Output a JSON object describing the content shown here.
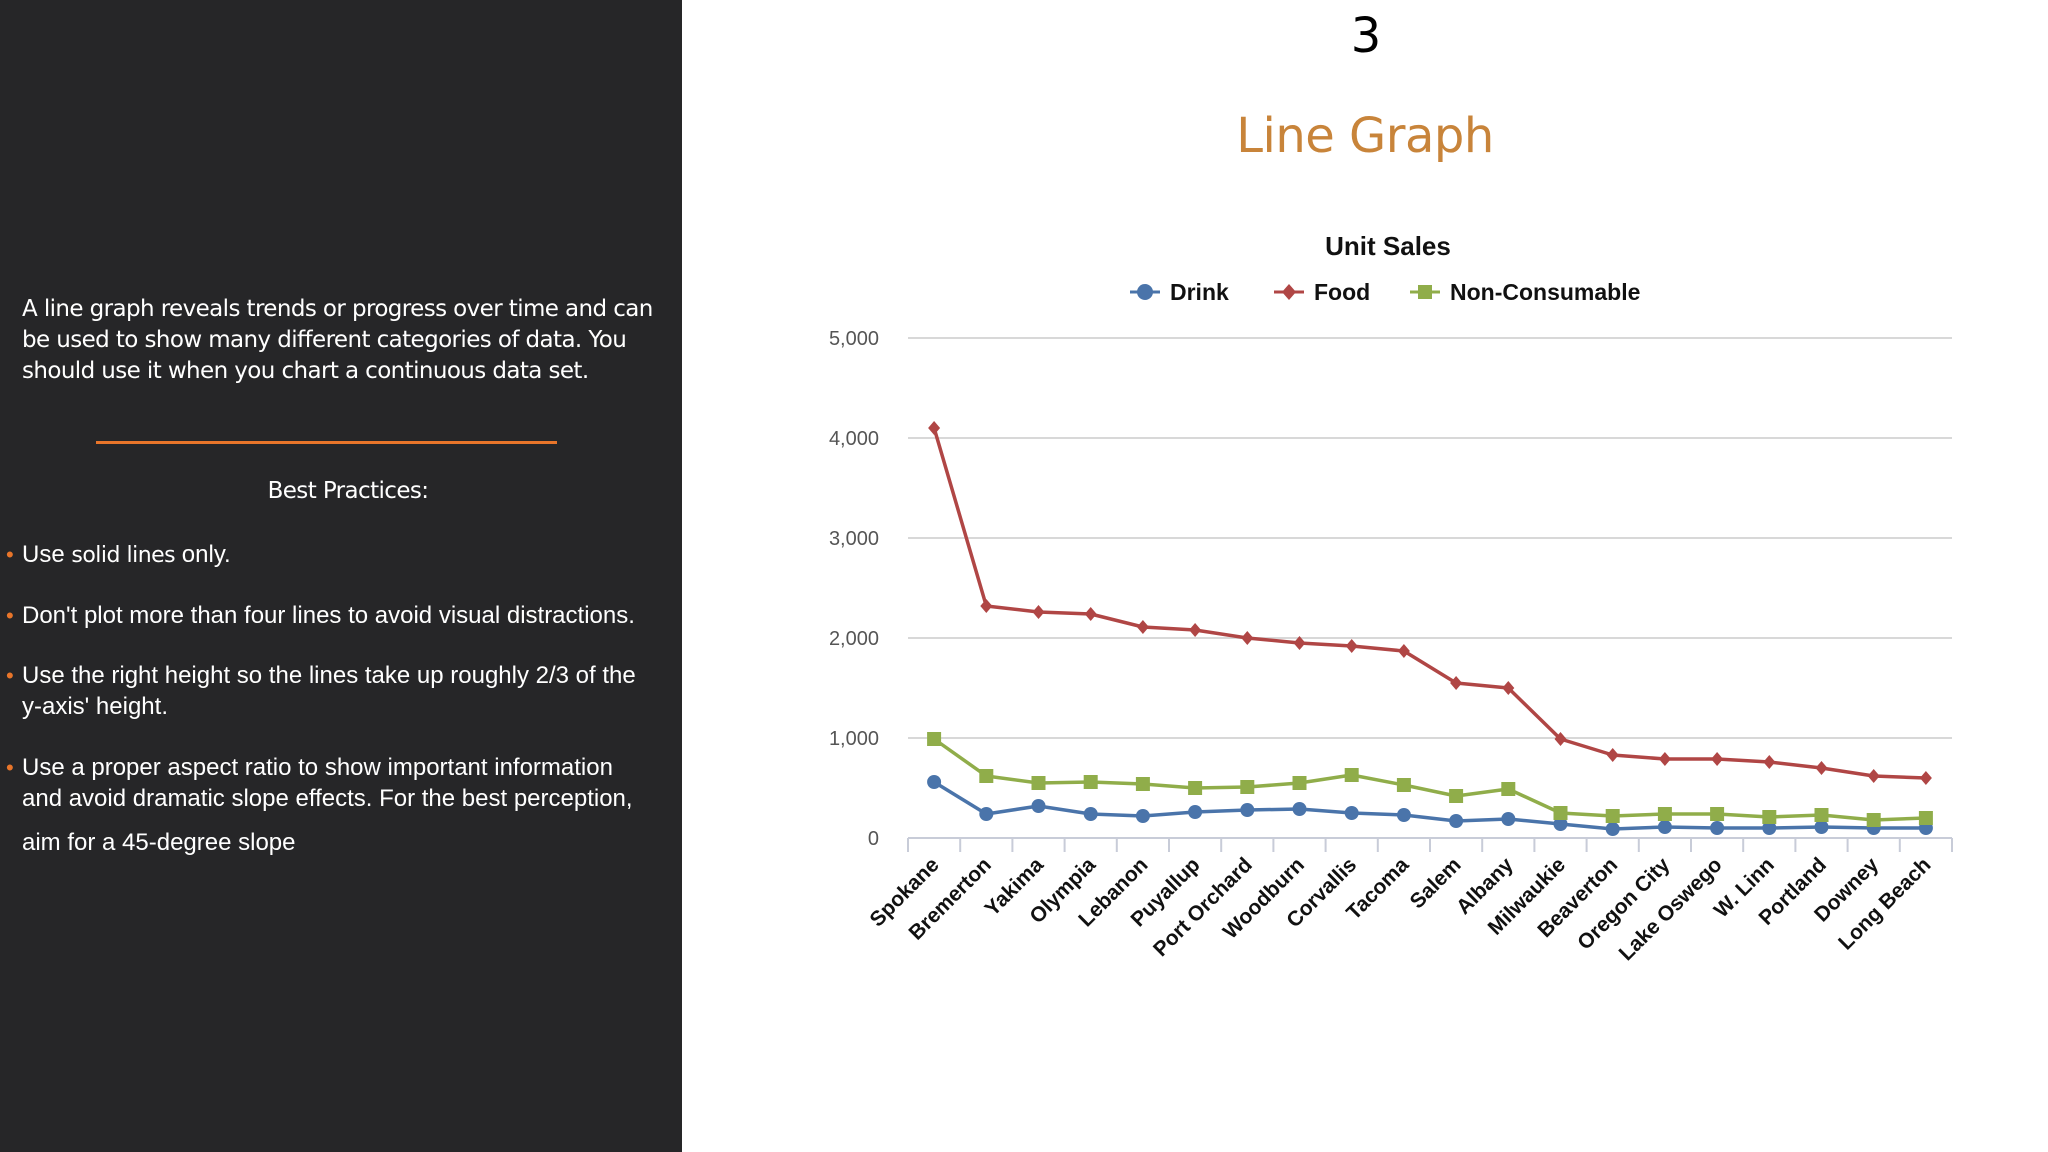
{
  "slide": {
    "number": "3",
    "title": "Line Graph"
  },
  "left_panel": {
    "intro": "A line graph reveals trends or progress over time and can be used to show many different categories of data. You should use it when you chart a continuous data set.",
    "best_practices_heading": "Best Practices:",
    "bullets": [
      {
        "pre": "Use ",
        "strong": "solid lines",
        "post": " only."
      },
      {
        "text": "Don't plot more than four lines to avoid visual distractions."
      },
      {
        "line1": "Use the right height so the lines take up roughly 2/3 of the",
        "line2": "y-axis' height."
      },
      {
        "line1": "Use a proper aspect ratio to show important information",
        "line2": "and avoid dramatic slope effects. For the best perception,",
        "line3": "aim for a 45-degree slope"
      }
    ],
    "colors": {
      "background": "#262628",
      "accent": "#e8752a"
    }
  },
  "chart_data": {
    "type": "line",
    "title": "Unit Sales",
    "xlabel": "",
    "ylabel": "",
    "ylim": [
      0,
      5000
    ],
    "yticks": [
      0,
      1000,
      2000,
      3000,
      4000,
      5000
    ],
    "ytick_labels": [
      "0",
      "1,000",
      "2,000",
      "3,000",
      "4,000",
      "5,000"
    ],
    "grid": true,
    "legend": "top-center",
    "categories": [
      "Spokane",
      "Bremerton",
      "Yakima",
      "Olympia",
      "Lebanon",
      "Puyallup",
      "Port Orchard",
      "Woodburn",
      "Corvallis",
      "Tacoma",
      "Salem",
      "Albany",
      "Milwaukie",
      "Beaverton",
      "Oregon City",
      "Lake Oswego",
      "W. Linn",
      "Portland",
      "Downey",
      "Long Beach"
    ],
    "series": [
      {
        "name": "Drink",
        "color": "#4a74aa",
        "marker": "circle",
        "values": [
          560,
          240,
          320,
          240,
          220,
          260,
          280,
          290,
          250,
          230,
          170,
          190,
          140,
          90,
          110,
          100,
          100,
          110,
          100,
          100
        ]
      },
      {
        "name": "Food",
        "color": "#b04645",
        "marker": "diamond",
        "values": [
          4100,
          2320,
          2260,
          2240,
          2110,
          2080,
          2000,
          1950,
          1920,
          1870,
          1550,
          1500,
          990,
          830,
          790,
          790,
          760,
          700,
          620,
          600
        ]
      },
      {
        "name": "Non-Consumable",
        "color": "#90ad4a",
        "marker": "square",
        "values": [
          990,
          620,
          550,
          560,
          540,
          500,
          510,
          550,
          630,
          530,
          420,
          490,
          250,
          220,
          240,
          240,
          210,
          230,
          180,
          200
        ]
      }
    ]
  }
}
